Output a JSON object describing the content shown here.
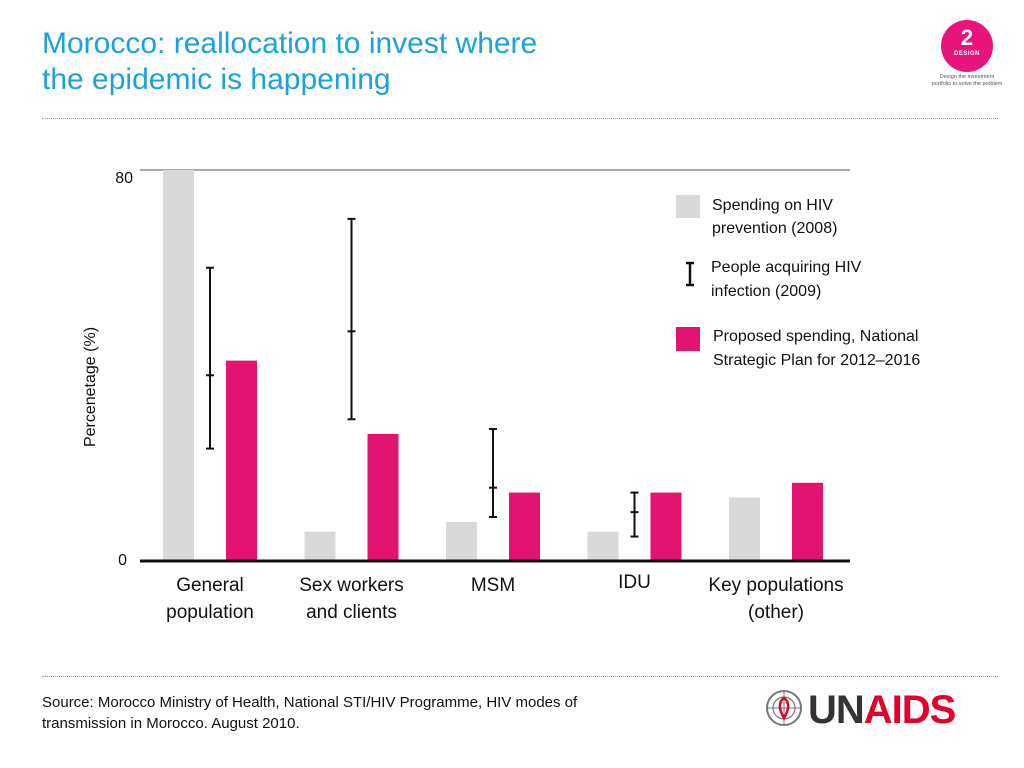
{
  "title": {
    "line1": "Morocco: reallocation to invest where",
    "line2": "the epidemic is happening"
  },
  "badge": {
    "number": "2",
    "word": "DESIGN",
    "caption": "Design the investment portfolio to solve the problem"
  },
  "source": {
    "line1": "Source: Morocco Ministry of Health, National STI/HIV Programme, HIV modes of",
    "line2": "transmission in Morocco. August 2010."
  },
  "logo": {
    "un": "UN",
    "aids": "AIDS"
  },
  "colors": {
    "title": "#1ba1dd",
    "spending_2008": "#d9d9da",
    "proposed": "#e2146f",
    "errorbar": "#111111",
    "brand_red": "#e4002b"
  },
  "chart_data": {
    "type": "bar",
    "ylabel": "Percenetage (%)",
    "ylim": [
      0,
      80
    ],
    "yticks": [
      "80",
      "0"
    ],
    "categories": [
      [
        "General",
        "population"
      ],
      [
        "Sex workers",
        "and clients"
      ],
      [
        "MSM"
      ],
      [
        "IDU"
      ],
      [
        "Key populations",
        "(other)"
      ]
    ],
    "series": [
      {
        "name": "Spending on HIV prevention (2008)",
        "legend": [
          "Spending on HIV",
          "prevention (2008)"
        ],
        "kind": "bar",
        "color": "#d9d9da",
        "values": [
          80,
          6,
          8,
          6,
          13
        ]
      },
      {
        "name": "People acquiring HIV infection (2009)",
        "legend": [
          "People acquiring HIV",
          "infection (2009)"
        ],
        "kind": "errorbar",
        "color": "#111111",
        "values": [
          38,
          47,
          15,
          10,
          null
        ],
        "low": [
          23,
          29,
          9,
          5,
          null
        ],
        "high": [
          60,
          70,
          27,
          14,
          null
        ]
      },
      {
        "name": "Proposed spending, National Strategic Plan for 2012–2016",
        "legend": [
          "Proposed spending, National",
          "Strategic Plan for 2012–2016"
        ],
        "kind": "bar",
        "color": "#e2146f",
        "values": [
          41,
          26,
          14,
          14,
          16
        ]
      }
    ]
  }
}
